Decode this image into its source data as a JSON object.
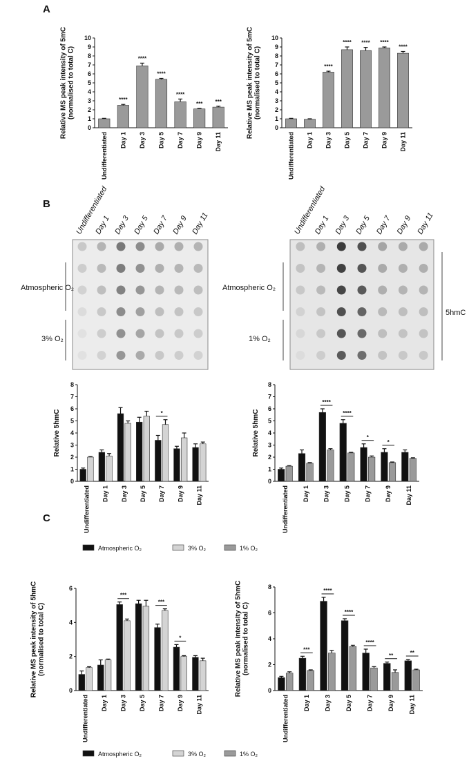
{
  "figure": {
    "panels": [
      "A",
      "B",
      "C"
    ],
    "blots": [
      {
        "rows": [
          "Atmospheric O₂",
          "3% O₂"
        ]
      },
      {
        "rows": [
          "Atmospheric O₂",
          "1% O₂"
        ],
        "side_label": "5hmC"
      }
    ]
  },
  "chart_data": [
    {
      "type": "bar",
      "y_label": [
        "Relative MS peak intensity of 5mC",
        "(normalised to total C)"
      ],
      "categories": [
        "Undifferentiated",
        "Day 1",
        "Day 3",
        "Day 5",
        "Day 7",
        "Day 9",
        "Day 11"
      ],
      "values": [
        1.0,
        2.5,
        6.9,
        5.4,
        2.9,
        2.1,
        2.3
      ],
      "errors": [
        0.05,
        0.1,
        0.3,
        0.1,
        0.3,
        0.05,
        0.1
      ],
      "significance": [
        null,
        "****",
        "****",
        "****",
        "****",
        "***",
        "***"
      ],
      "color": "#9a9a9a",
      "ylim": [
        0,
        10
      ],
      "yticks": [
        0,
        1,
        2,
        3,
        4,
        5,
        6,
        7,
        8,
        9,
        10
      ]
    },
    {
      "type": "bar",
      "y_label": [
        "Relative MS peak intensity of 5mC",
        "(normalised to total C)"
      ],
      "categories": [
        "Undifferentiated",
        "Day 1",
        "Day 3",
        "Day 5",
        "Day 7",
        "Day 9",
        "Day 11"
      ],
      "values": [
        1.0,
        0.95,
        6.2,
        8.7,
        8.6,
        8.9,
        8.3
      ],
      "errors": [
        0.05,
        0.05,
        0.1,
        0.3,
        0.35,
        0.1,
        0.2
      ],
      "significance": [
        null,
        null,
        "****",
        "****",
        "****",
        "****",
        "****"
      ],
      "color": "#9a9a9a",
      "ylim": [
        0,
        10
      ],
      "yticks": [
        0,
        1,
        2,
        3,
        4,
        5,
        6,
        7,
        8,
        9,
        10
      ]
    },
    {
      "type": "bar",
      "y_label": [
        "Relative 5hmC"
      ],
      "categories": [
        "Undifferentiated",
        "Day 1",
        "Day 3",
        "Day 5",
        "Day 7",
        "Day 9",
        "Day 11"
      ],
      "series": [
        {
          "name": "Atmospheric O₂",
          "color": "#111111",
          "values": [
            1.0,
            2.4,
            5.6,
            4.9,
            3.4,
            2.7,
            2.8
          ],
          "errors": [
            0.1,
            0.2,
            0.5,
            0.4,
            0.4,
            0.2,
            0.3
          ]
        },
        {
          "name": "3% O₂",
          "color": "#d4d4d4",
          "values": [
            2.0,
            2.1,
            4.8,
            5.4,
            4.7,
            3.6,
            3.1
          ],
          "errors": [
            0.05,
            0.2,
            0.2,
            0.4,
            0.4,
            0.4,
            0.15
          ]
        }
      ],
      "significance": [
        null,
        null,
        null,
        null,
        "*",
        null,
        null
      ],
      "ylim": [
        0,
        8
      ],
      "yticks": [
        0,
        1,
        2,
        3,
        4,
        5,
        6,
        7,
        8
      ]
    },
    {
      "type": "bar",
      "y_label": [
        "Relative 5hmC"
      ],
      "categories": [
        "Undifferentiated",
        "Day 1",
        "Day 3",
        "Day 5",
        "Day 7",
        "Day 9",
        "Day 11"
      ],
      "series": [
        {
          "name": "Atmospheric O₂",
          "color": "#111111",
          "values": [
            1.0,
            2.3,
            5.7,
            4.8,
            2.8,
            2.4,
            2.4
          ],
          "errors": [
            0.1,
            0.3,
            0.3,
            0.3,
            0.3,
            0.3,
            0.2
          ]
        },
        {
          "name": "1% O₂",
          "color": "#9a9a9a",
          "values": [
            1.25,
            1.5,
            2.6,
            2.35,
            2.0,
            1.55,
            1.9
          ],
          "errors": [
            0.05,
            0.05,
            0.1,
            0.05,
            0.1,
            0.05,
            0.05
          ]
        }
      ],
      "significance": [
        null,
        null,
        "****",
        "****",
        "*",
        "*",
        null
      ],
      "ylim": [
        0,
        8
      ],
      "yticks": [
        0,
        1,
        2,
        3,
        4,
        5,
        6,
        7,
        8
      ]
    },
    {
      "type": "bar",
      "y_label": [
        "Relative MS peak intensity of 5hmC",
        "(normalised to total C)"
      ],
      "categories": [
        "Undifferentiated",
        "Day 1",
        "Day 3",
        "Day 5",
        "Day 7",
        "Day 9",
        "Day 11"
      ],
      "series": [
        {
          "name": "Atmospheric O₂",
          "color": "#111111",
          "values": [
            0.95,
            1.5,
            5.05,
            5.1,
            3.7,
            2.55,
            1.95
          ],
          "errors": [
            0.2,
            0.3,
            0.15,
            0.2,
            0.2,
            0.15,
            0.1
          ]
        },
        {
          "name": "3% O₂",
          "color": "#d4d4d4",
          "values": [
            1.35,
            1.8,
            4.1,
            4.95,
            4.7,
            2.0,
            1.75
          ],
          "errors": [
            0.05,
            0.05,
            0.1,
            0.35,
            0.1,
            0.05,
            0.15
          ]
        }
      ],
      "significance": [
        null,
        null,
        "***",
        null,
        "***",
        "*",
        null
      ],
      "ylim": [
        0,
        6
      ],
      "yticks": [
        0,
        2,
        4,
        6
      ]
    },
    {
      "type": "bar",
      "y_label": [
        "Relative MS peak intensity of 5hmC",
        "(normalised to total C)"
      ],
      "categories": [
        "Undifferentiated",
        "Day 1",
        "Day 3",
        "Day 5",
        "Day 7",
        "Day 9",
        "Day 11"
      ],
      "series": [
        {
          "name": "Atmospheric O₂",
          "color": "#111111",
          "values": [
            1.0,
            2.5,
            6.9,
            5.4,
            2.9,
            2.1,
            2.3
          ],
          "errors": [
            0.1,
            0.15,
            0.3,
            0.15,
            0.3,
            0.1,
            0.1
          ]
        },
        {
          "name": "1% O₂",
          "color": "#9a9a9a",
          "values": [
            1.35,
            1.55,
            2.9,
            3.4,
            1.75,
            1.4,
            1.6
          ],
          "errors": [
            0.1,
            0.05,
            0.2,
            0.1,
            0.1,
            0.2,
            0.05
          ]
        }
      ],
      "significance": [
        null,
        "***",
        "****",
        "****",
        "****",
        "**",
        "**"
      ],
      "ylim": [
        0,
        8
      ],
      "yticks": [
        0,
        2,
        4,
        6,
        8
      ]
    }
  ]
}
